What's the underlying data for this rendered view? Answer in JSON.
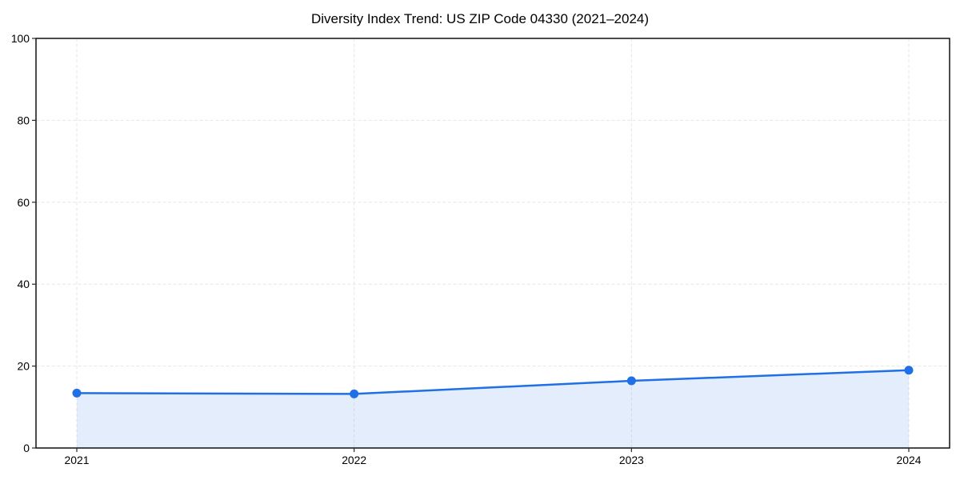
{
  "chart_data": {
    "type": "area",
    "title": "Diversity Index Trend: US ZIP Code 04330 (2021–2024)",
    "categories": [
      "2021",
      "2022",
      "2023",
      "2024"
    ],
    "series": [
      {
        "name": "Diversity Index",
        "values": [
          13.4,
          13.2,
          16.4,
          19.0
        ]
      }
    ],
    "xlabel": "",
    "ylabel": "",
    "ylim": [
      0,
      100
    ],
    "yticks": [
      0,
      20,
      40,
      60,
      80,
      100
    ],
    "grid": true,
    "grid_style": "dashed",
    "legend_position": "none",
    "markers": true,
    "colors": {
      "line": "#1f6fe6",
      "marker": "#1f6fe6",
      "fill": "rgba(31,111,230,0.12)",
      "grid": "#e6e6e6",
      "spine": "#000000",
      "tick": "#262626",
      "text": "#000000",
      "background": "#ffffff"
    }
  }
}
